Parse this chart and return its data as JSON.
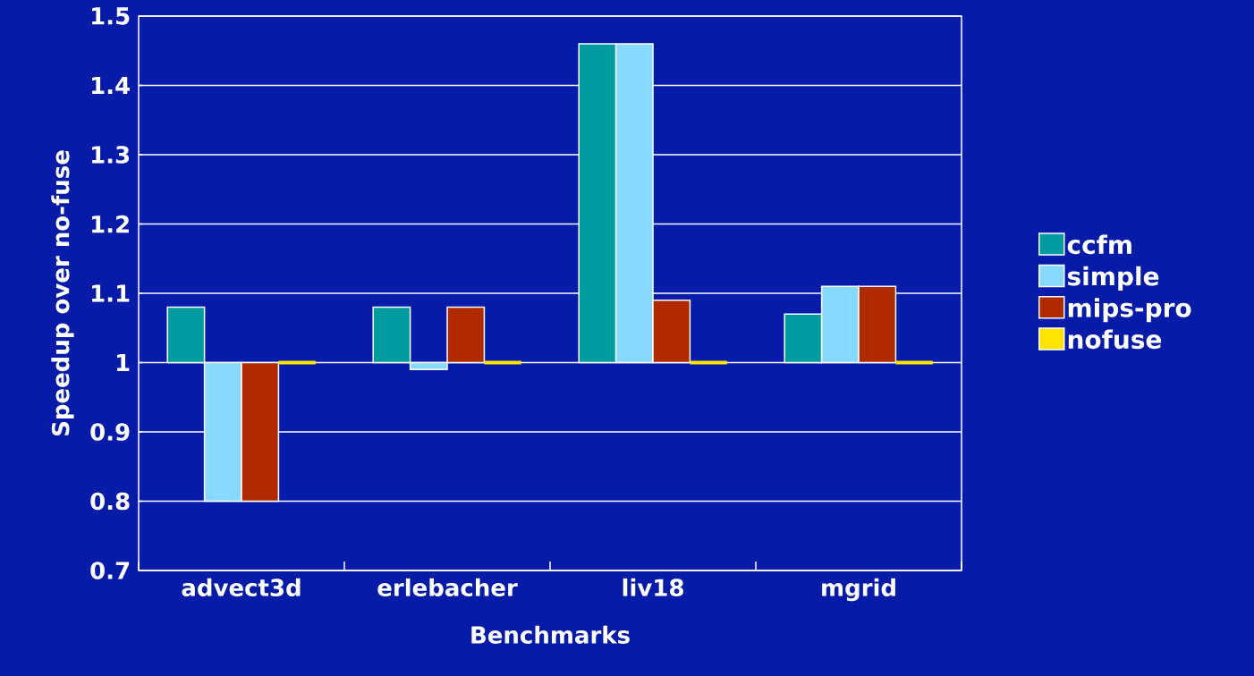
{
  "chart_data": {
    "type": "bar",
    "xlabel": "Benchmarks",
    "ylabel": "Speedup over no-fuse",
    "categories": [
      "advect3d",
      "erlebacher",
      "liv18",
      "mgrid"
    ],
    "series": [
      {
        "name": "ccfm",
        "color": "#009c9f",
        "base": [
          1,
          1,
          1,
          1
        ],
        "values": [
          0.08,
          0.08,
          0.46,
          0.07
        ]
      },
      {
        "name": "simple",
        "color": "#87d9ff",
        "base": [
          1,
          1,
          1,
          1
        ],
        "values": [
          -0.2,
          -0.01,
          0.46,
          0.11
        ]
      },
      {
        "name": "mips-pro",
        "color": "#b02a00",
        "base": [
          1,
          1,
          1,
          1
        ],
        "values": [
          -0.2,
          0.08,
          0.09,
          0.11
        ]
      },
      {
        "name": "nofuse",
        "color": "#ffe400",
        "base": [
          1,
          1,
          1,
          1
        ],
        "values": [
          0,
          0,
          0,
          0
        ]
      }
    ],
    "ylim": [
      0.7,
      1.5
    ],
    "yticks": [
      0.7,
      0.8,
      0.9,
      1,
      1.1,
      1.2,
      1.3,
      1.4,
      1.5
    ],
    "grid": "y",
    "legend": "right"
  }
}
